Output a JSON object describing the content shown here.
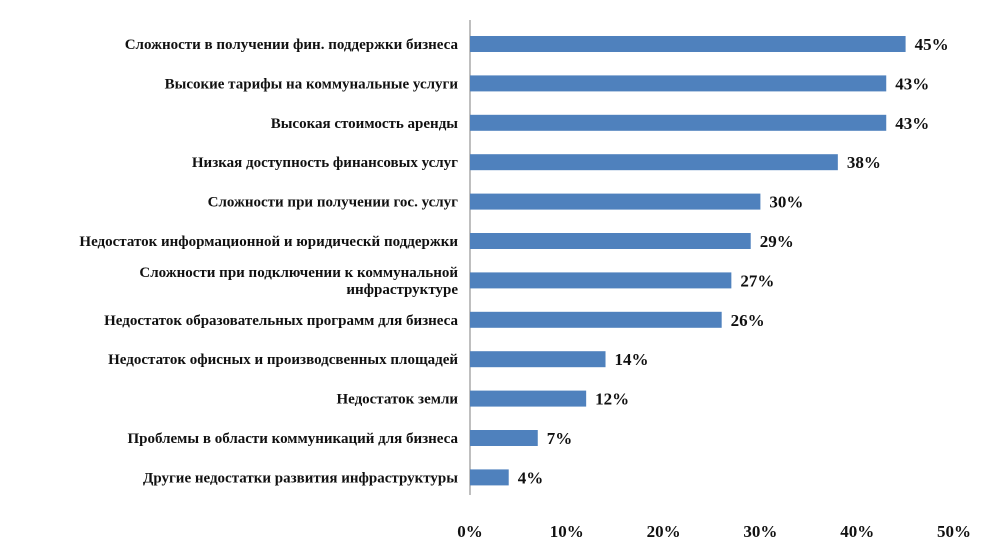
{
  "chart_data": {
    "type": "bar",
    "orientation": "horizontal",
    "title": "",
    "xlabel": "",
    "ylabel": "",
    "xlim": [
      0,
      50
    ],
    "grid": false,
    "legend": "none",
    "bar_color": "#4F81BD",
    "ticks": [
      "0%",
      "10%",
      "20%",
      "30%",
      "40%",
      "50%"
    ],
    "categories": [
      [
        "Сложности в получении фин. поддержки бизнеса"
      ],
      [
        "Высокие тарифы на коммунальные услуги"
      ],
      [
        "Высокая стоимость аренды"
      ],
      [
        "Низкая доступность финансовых услуг"
      ],
      [
        "Сложности при получении гос. услуг"
      ],
      [
        "Недостаток информационной и юридическй поддержки"
      ],
      [
        "Сложности при подключении к коммунальной",
        "инфраструктуре"
      ],
      [
        "Недостаток образовательных программ для бизнеса"
      ],
      [
        "Недостаток офисных и производсвенных площадей"
      ],
      [
        "Недостаток земли"
      ],
      [
        "Проблемы в области коммуникаций для бизнеса"
      ],
      [
        "Другие недостатки развития инфраструктуры"
      ]
    ],
    "values": [
      45,
      43,
      43,
      38,
      30,
      29,
      27,
      26,
      14,
      12,
      7,
      4
    ],
    "value_labels": [
      "45%",
      "43%",
      "43%",
      "38%",
      "30%",
      "29%",
      "27%",
      "26%",
      "14%",
      "12%",
      "7%",
      "4%"
    ]
  }
}
